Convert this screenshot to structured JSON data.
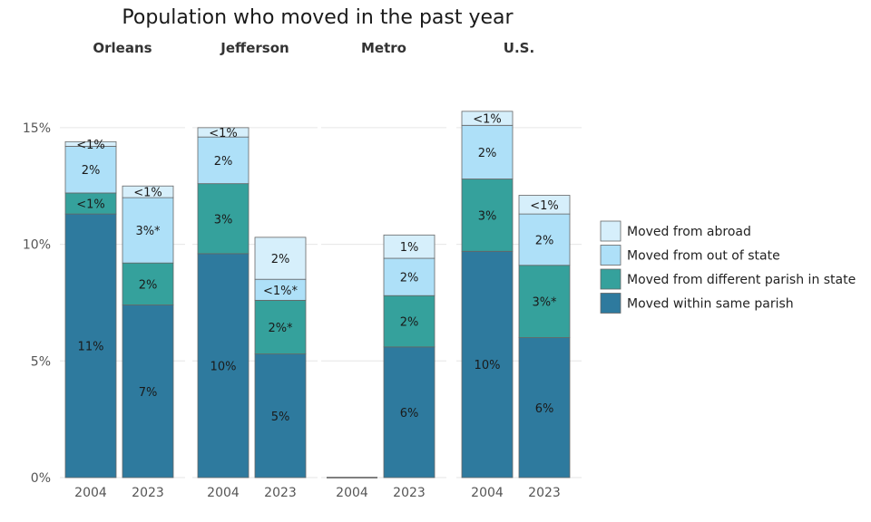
{
  "chart_data": {
    "type": "bar",
    "stacked": true,
    "title": "Population who moved in the past year",
    "ylim": [
      0,
      15.5
    ],
    "y_ticks": [
      {
        "value": 0,
        "label": "0%"
      },
      {
        "value": 5,
        "label": "5%"
      },
      {
        "value": 10,
        "label": "10%"
      },
      {
        "value": 15,
        "label": "15%"
      }
    ],
    "grid": true,
    "legend_position": "right",
    "series": [
      {
        "key": "same_parish",
        "name": "Moved within same parish",
        "color": "#2e7a9e"
      },
      {
        "key": "diff_parish",
        "name": "Moved from different parish in state",
        "color": "#35a19c"
      },
      {
        "key": "out_of_state",
        "name": "Moved from out of state",
        "color": "#aee0f8"
      },
      {
        "key": "abroad",
        "name": "Moved from abroad",
        "color": "#d6effb"
      }
    ],
    "panels": [
      {
        "name": "Orleans",
        "bars": [
          {
            "x": "2004",
            "values": [
              11.3,
              0.9,
              2.0,
              0.2
            ],
            "labels": [
              "11%",
              "<1%",
              "2%",
              "<1%"
            ]
          },
          {
            "x": "2023",
            "values": [
              7.4,
              1.8,
              2.8,
              0.5
            ],
            "labels": [
              "7%",
              "2%",
              "3%*",
              "<1%"
            ]
          }
        ]
      },
      {
        "name": "Jefferson",
        "bars": [
          {
            "x": "2004",
            "values": [
              9.6,
              3.0,
              2.0,
              0.4
            ],
            "labels": [
              "10%",
              "3%",
              "2%",
              "<1%"
            ]
          },
          {
            "x": "2023",
            "values": [
              5.3,
              2.3,
              0.9,
              1.8
            ],
            "labels": [
              "5%",
              "2%*",
              "<1%*",
              "2%"
            ]
          }
        ]
      },
      {
        "name": "Metro",
        "bars": [
          {
            "x": "2004",
            "values": [
              0,
              0,
              0,
              0
            ],
            "labels": [
              "",
              "",
              "",
              ""
            ]
          },
          {
            "x": "2023",
            "values": [
              5.6,
              2.2,
              1.6,
              1.0
            ],
            "labels": [
              "6%",
              "2%",
              "2%",
              "1%"
            ]
          }
        ]
      },
      {
        "name": "U.S.",
        "bars": [
          {
            "x": "2004",
            "values": [
              9.7,
              3.1,
              2.3,
              0.6
            ],
            "labels": [
              "10%",
              "3%",
              "2%",
              "<1%"
            ]
          },
          {
            "x": "2023",
            "values": [
              6.0,
              3.1,
              2.2,
              0.8
            ],
            "labels": [
              "6%",
              "3%*",
              "2%",
              "<1%"
            ]
          }
        ]
      }
    ]
  }
}
